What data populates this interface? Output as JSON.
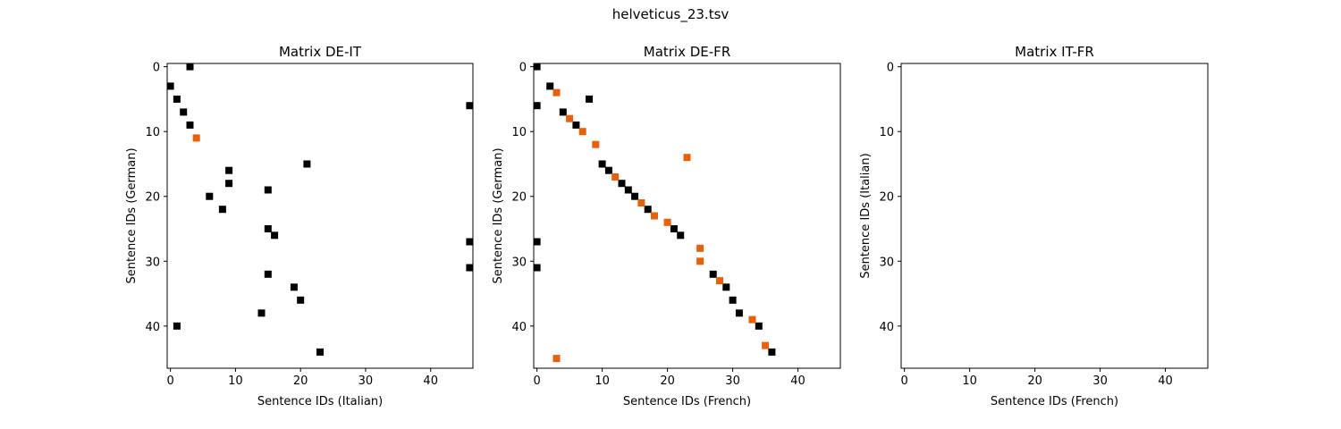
{
  "colors": {
    "black": "#000000",
    "orange": "#e8600a",
    "axis": "#000000",
    "background": "#ffffff"
  },
  "chart_data": {
    "title": "helveticus_23.tsv",
    "type": "scatter",
    "panels": [
      {
        "type": "scatter",
        "title": "Matrix DE-IT",
        "xlabel": "Sentence IDs (Italian)",
        "ylabel": "Sentence IDs (German)",
        "xlim": [
          -0.5,
          46.5
        ],
        "ylim": [
          46.5,
          -0.5
        ],
        "xticks": [
          0,
          10,
          20,
          30,
          40
        ],
        "yticks": [
          0,
          10,
          20,
          30,
          40
        ],
        "series": [
          {
            "name": "black",
            "points": [
              [
                3,
                0
              ],
              [
                0,
                3
              ],
              [
                1,
                5
              ],
              [
                2,
                7
              ],
              [
                3,
                9
              ],
              [
                46,
                6
              ],
              [
                21,
                15
              ],
              [
                9,
                16
              ],
              [
                9,
                18
              ],
              [
                15,
                19
              ],
              [
                6,
                20
              ],
              [
                8,
                22
              ],
              [
                15,
                25
              ],
              [
                16,
                26
              ],
              [
                46,
                27
              ],
              [
                46,
                31
              ],
              [
                15,
                32
              ],
              [
                19,
                34
              ],
              [
                20,
                36
              ],
              [
                14,
                38
              ],
              [
                1,
                40
              ],
              [
                23,
                44
              ]
            ]
          },
          {
            "name": "orange",
            "points": [
              [
                4,
                11
              ]
            ]
          }
        ]
      },
      {
        "type": "scatter",
        "title": "Matrix DE-FR",
        "xlabel": "Sentence IDs (French)",
        "ylabel": "Sentence IDs (German)",
        "xlim": [
          -0.5,
          46.5
        ],
        "ylim": [
          46.5,
          -0.5
        ],
        "xticks": [
          0,
          10,
          20,
          30,
          40
        ],
        "yticks": [
          0,
          10,
          20,
          30,
          40
        ],
        "series": [
          {
            "name": "black",
            "points": [
              [
                0,
                0
              ],
              [
                2,
                3
              ],
              [
                8,
                5
              ],
              [
                0,
                6
              ],
              [
                4,
                7
              ],
              [
                6,
                9
              ],
              [
                10,
                15
              ],
              [
                11,
                16
              ],
              [
                13,
                18
              ],
              [
                14,
                19
              ],
              [
                15,
                20
              ],
              [
                17,
                22
              ],
              [
                21,
                25
              ],
              [
                22,
                26
              ],
              [
                0,
                27
              ],
              [
                0,
                31
              ],
              [
                27,
                32
              ],
              [
                29,
                34
              ],
              [
                30,
                36
              ],
              [
                31,
                38
              ],
              [
                34,
                40
              ],
              [
                36,
                44
              ]
            ]
          },
          {
            "name": "orange",
            "points": [
              [
                3,
                4
              ],
              [
                5,
                8
              ],
              [
                7,
                10
              ],
              [
                9,
                12
              ],
              [
                23,
                14
              ],
              [
                12,
                17
              ],
              [
                16,
                21
              ],
              [
                18,
                23
              ],
              [
                20,
                24
              ],
              [
                25,
                28
              ],
              [
                25,
                30
              ],
              [
                28,
                33
              ],
              [
                33,
                39
              ],
              [
                35,
                43
              ],
              [
                3,
                45
              ]
            ]
          }
        ]
      },
      {
        "type": "scatter",
        "title": "Matrix IT-FR",
        "xlabel": "Sentence IDs (French)",
        "ylabel": "Sentence IDs (Italian)",
        "xlim": [
          -0.5,
          46.5
        ],
        "ylim": [
          46.5,
          -0.5
        ],
        "xticks": [
          0,
          10,
          20,
          30,
          40
        ],
        "yticks": [
          0,
          10,
          20,
          30,
          40
        ],
        "series": [
          {
            "name": "black",
            "points": []
          },
          {
            "name": "orange",
            "points": []
          }
        ]
      }
    ]
  }
}
